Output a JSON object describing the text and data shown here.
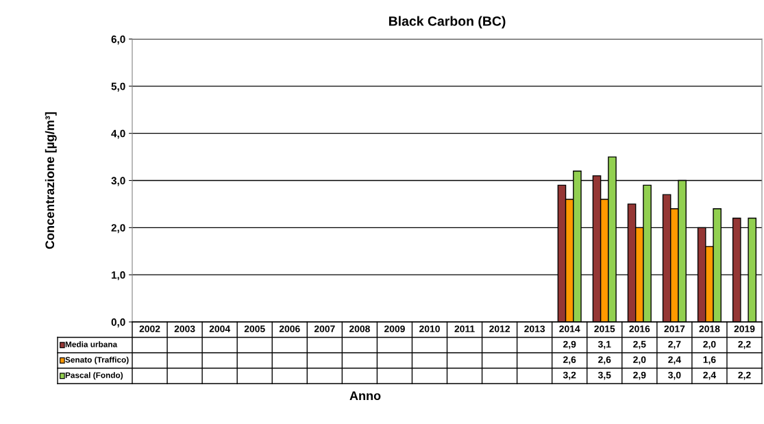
{
  "chart_data": {
    "type": "bar",
    "title": "Black Carbon (BC)",
    "xlabel": "Anno",
    "ylabel": "Concentrazione [µg/m³]",
    "categories": [
      "2002",
      "2003",
      "2004",
      "2005",
      "2006",
      "2007",
      "2008",
      "2009",
      "2010",
      "2011",
      "2012",
      "2013",
      "2014",
      "2015",
      "2016",
      "2017",
      "2018",
      "2019"
    ],
    "series": [
      {
        "name": "Media urbana",
        "color": "#953735",
        "values": [
          null,
          null,
          null,
          null,
          null,
          null,
          null,
          null,
          null,
          null,
          null,
          null,
          2.9,
          3.1,
          2.5,
          2.7,
          2.0,
          2.2
        ],
        "value_labels": [
          null,
          null,
          null,
          null,
          null,
          null,
          null,
          null,
          null,
          null,
          null,
          null,
          "2,9",
          "3,1",
          "2,5",
          "2,7",
          "2,0",
          "2,2"
        ]
      },
      {
        "name": "Senato (Traffico)",
        "color": "#ff9900",
        "values": [
          null,
          null,
          null,
          null,
          null,
          null,
          null,
          null,
          null,
          null,
          null,
          null,
          2.6,
          2.6,
          2.0,
          2.4,
          1.6,
          null
        ],
        "value_labels": [
          null,
          null,
          null,
          null,
          null,
          null,
          null,
          null,
          null,
          null,
          null,
          null,
          "2,6",
          "2,6",
          "2,0",
          "2,4",
          "1,6",
          null
        ]
      },
      {
        "name": "Pascal (Fondo)",
        "color": "#92d050",
        "values": [
          null,
          null,
          null,
          null,
          null,
          null,
          null,
          null,
          null,
          null,
          null,
          null,
          3.2,
          3.5,
          2.9,
          3.0,
          2.4,
          2.2
        ],
        "value_labels": [
          null,
          null,
          null,
          null,
          null,
          null,
          null,
          null,
          null,
          null,
          null,
          null,
          "3,2",
          "3,5",
          "2,9",
          "3,0",
          "2,4",
          "2,2"
        ]
      }
    ],
    "ylim": [
      0,
      6
    ],
    "yticks": [
      {
        "value": 0,
        "label": "0,0"
      },
      {
        "value": 1,
        "label": "1,0"
      },
      {
        "value": 2,
        "label": "2,0"
      },
      {
        "value": 3,
        "label": "3,0"
      },
      {
        "value": 4,
        "label": "4,0"
      },
      {
        "value": 5,
        "label": "5,0"
      },
      {
        "value": 6,
        "label": "6,0"
      }
    ],
    "grid": "y",
    "legend": "bottom left"
  }
}
